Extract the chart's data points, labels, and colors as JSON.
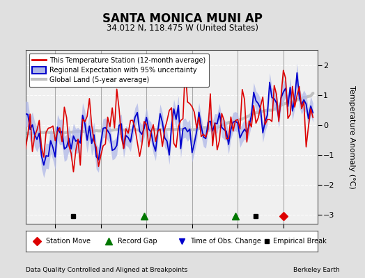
{
  "title": "SANTA MONICA MUNI AP",
  "subtitle": "34.012 N, 118.475 W (United States)",
  "ylabel": "Temperature Anomaly (°C)",
  "footer_left": "Data Quality Controlled and Aligned at Breakpoints",
  "footer_right": "Berkeley Earth",
  "ylim": [
    -3.3,
    2.5
  ],
  "yticks": [
    -3,
    -2,
    -1,
    0,
    1,
    2
  ],
  "year_start": 1880,
  "year_end": 2013,
  "xlim_start": 1887,
  "xlim_end": 2015,
  "xticks": [
    1900,
    1920,
    1940,
    1960,
    1980,
    2000
  ],
  "bg_color": "#e0e0e0",
  "plot_bg_color": "#f0f0f0",
  "grid_color": "#ffffff",
  "vline_color": "#aaaaaa",
  "vline_years": [
    1900,
    1920,
    1940,
    1960,
    1980,
    2000
  ],
  "station_color": "#dd0000",
  "regional_color": "#0000cc",
  "regional_fill_color": "#b0b8e8",
  "global_color": "#c0c0c0",
  "legend_entries": [
    "This Temperature Station (12-month average)",
    "Regional Expectation with 95% uncertainty",
    "Global Land (5-year average)"
  ],
  "marker_events": {
    "empirical_breaks": [
      1908,
      1988
    ],
    "record_gaps": [
      1939,
      1979
    ],
    "station_moves": [
      2000
    ],
    "time_of_obs_changes": []
  },
  "seed": 42
}
